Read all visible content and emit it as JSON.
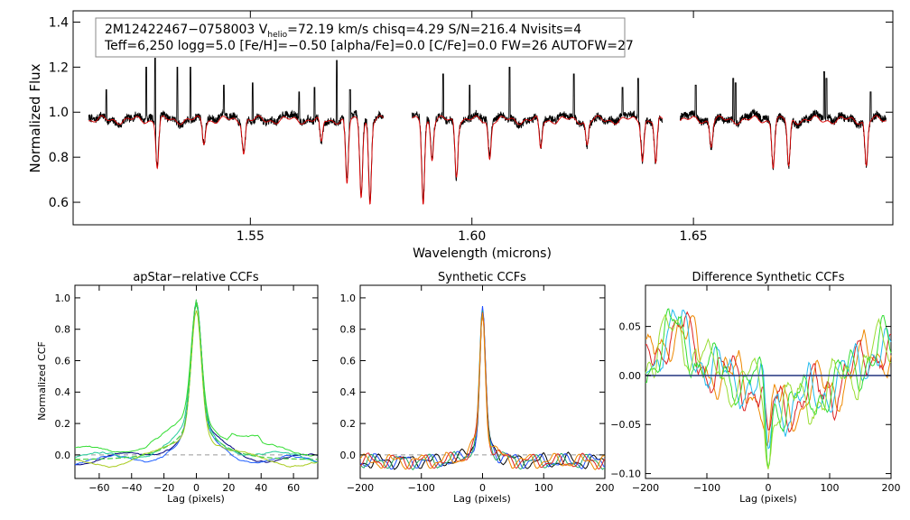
{
  "chart_data": [
    {
      "id": "spectrum",
      "type": "line",
      "xlabel": "Wavelength (microns)",
      "ylabel": "Normalized Flux",
      "xlim": [
        1.51,
        1.695
      ],
      "ylim": [
        0.5,
        1.45
      ],
      "xticks": [
        {
          "v": 1.55,
          "label": "1.55"
        },
        {
          "v": 1.6,
          "label": "1.60"
        },
        {
          "v": 1.65,
          "label": "1.65"
        }
      ],
      "yticks": [
        {
          "v": 0.6,
          "label": "0.6"
        },
        {
          "v": 0.8,
          "label": "0.8"
        },
        {
          "v": 1.0,
          "label": "1.0"
        },
        {
          "v": 1.2,
          "label": "1.2"
        },
        {
          "v": 1.4,
          "label": "1.4"
        }
      ],
      "annotation": {
        "star": "2M12422467−0758003",
        "vhelio_prefix": "V",
        "vhelio_sub": "helio",
        "vhelio_rest": "=72.19 km/s  chisq=4.29  S/N=216.4  Nvisits=4",
        "line2": "Teff=6,250 logg=5.0 [Fe/H]=−0.50 [alpha/Fe]=0.0 [C/Fe]=0.0 FW=26 AUTOFW=27"
      },
      "chips": [
        [
          1.5135,
          1.58
        ],
        [
          1.5865,
          1.643
        ],
        [
          1.647,
          1.6935
        ]
      ],
      "continuum": 0.97,
      "absorption_lines": [
        [
          1.529,
          0.76
        ],
        [
          1.5395,
          0.87
        ],
        [
          1.5485,
          0.83
        ],
        [
          1.566,
          0.86
        ],
        [
          1.5718,
          0.68
        ],
        [
          1.575,
          0.64
        ],
        [
          1.577,
          0.6
        ],
        [
          1.589,
          0.61
        ],
        [
          1.591,
          0.8
        ],
        [
          1.5965,
          0.73
        ],
        [
          1.604,
          0.8
        ],
        [
          1.6155,
          0.84
        ],
        [
          1.626,
          0.86
        ],
        [
          1.6385,
          0.8
        ],
        [
          1.6415,
          0.77
        ],
        [
          1.654,
          0.86
        ],
        [
          1.668,
          0.77
        ],
        [
          1.6715,
          0.76
        ],
        [
          1.689,
          0.77
        ]
      ],
      "emission_spikes": [
        [
          1.5175,
          1.1
        ],
        [
          1.5265,
          1.2
        ],
        [
          1.5285,
          1.24
        ],
        [
          1.5335,
          1.2
        ],
        [
          1.5365,
          1.2
        ],
        [
          1.544,
          1.12
        ],
        [
          1.5505,
          1.13
        ],
        [
          1.561,
          1.09
        ],
        [
          1.5645,
          1.11
        ],
        [
          1.5695,
          1.23
        ],
        [
          1.5725,
          1.1
        ],
        [
          1.5935,
          1.17
        ],
        [
          1.5995,
          1.12
        ],
        [
          1.6085,
          1.2
        ],
        [
          1.623,
          1.17
        ],
        [
          1.634,
          1.11
        ],
        [
          1.6375,
          1.15
        ],
        [
          1.6505,
          1.12
        ],
        [
          1.659,
          1.15
        ],
        [
          1.6595,
          1.13
        ],
        [
          1.6795,
          1.18
        ],
        [
          1.68,
          1.15
        ],
        [
          1.69,
          1.09
        ]
      ],
      "series": [
        {
          "name": "observed",
          "color": "#000000"
        },
        {
          "name": "model",
          "color": "#dd0000"
        }
      ]
    },
    {
      "id": "apstar-ccf",
      "type": "line",
      "title": "apStar−relative CCFs",
      "xlabel": "Lag (pixels)",
      "ylabel": "Normalized CCF",
      "xlim": [
        -75,
        75
      ],
      "ylim": [
        -0.15,
        1.08
      ],
      "xticks": [
        {
          "v": -60,
          "label": "−60"
        },
        {
          "v": -40,
          "label": "−40"
        },
        {
          "v": -20,
          "label": "−20"
        },
        {
          "v": 0,
          "label": "0"
        },
        {
          "v": 20,
          "label": "20"
        },
        {
          "v": 40,
          "label": "40"
        },
        {
          "v": 60,
          "label": "60"
        }
      ],
      "yticks": [
        {
          "v": 0.0,
          "label": "0.0"
        },
        {
          "v": 0.2,
          "label": "0.2"
        },
        {
          "v": 0.4,
          "label": "0.4"
        },
        {
          "v": 0.6,
          "label": "0.6"
        },
        {
          "v": 0.8,
          "label": "0.8"
        },
        {
          "v": 1.0,
          "label": "1.0"
        }
      ],
      "series": [
        {
          "name": "visit-1",
          "color": "#000080",
          "peak": 0.99,
          "base": -0.03,
          "wide": 0.3,
          "s1": 3,
          "s2": 14,
          "ph": 0.3
        },
        {
          "name": "visit-2",
          "color": "#1f5fff",
          "peak": 0.99,
          "base": -0.04,
          "wide": 0.28,
          "s1": 3,
          "s2": 13,
          "ph": 1.2
        },
        {
          "name": "visit-3",
          "color": "#22cc99",
          "peak": 0.99,
          "base": -0.02,
          "wide": 0.3,
          "s1": 3,
          "s2": 15,
          "ph": 2.1
        },
        {
          "name": "visit-4",
          "color": "#33dd33",
          "peak": 0.99,
          "base": 0.02,
          "wide": 0.34,
          "s1": 3,
          "s2": 16,
          "ph": 3.0
        },
        {
          "name": "visit-5",
          "color": "#aacc22",
          "peak": 0.99,
          "base": -0.05,
          "wide": 0.3,
          "s1": 3,
          "s2": 14,
          "ph": 4.4
        }
      ],
      "dashed_zero": true,
      "overlay": {
        "name": "combined",
        "color": "#44cc44"
      }
    },
    {
      "id": "synthetic-ccf",
      "type": "line",
      "title": "Synthetic CCFs",
      "xlabel": "Lag (pixels)",
      "xlim": [
        -200,
        200
      ],
      "ylim": [
        -0.15,
        1.08
      ],
      "xticks": [
        {
          "v": -200,
          "label": "−200"
        },
        {
          "v": -100,
          "label": "−100"
        },
        {
          "v": 0,
          "label": "0"
        },
        {
          "v": 100,
          "label": "100"
        },
        {
          "v": 200,
          "label": "200"
        }
      ],
      "yticks": [
        {
          "v": 0.0,
          "label": "0.0"
        },
        {
          "v": 0.2,
          "label": "0.2"
        },
        {
          "v": 0.4,
          "label": "0.4"
        },
        {
          "v": 0.6,
          "label": "0.6"
        },
        {
          "v": 0.8,
          "label": "0.8"
        },
        {
          "v": 1.0,
          "label": "1.0"
        }
      ],
      "series": [
        {
          "name": "visit-1",
          "color": "#000000",
          "ph": 0.2
        },
        {
          "name": "visit-2",
          "color": "#2050ff",
          "ph": 1.1
        },
        {
          "name": "visit-3",
          "color": "#22aa66",
          "ph": 2.0
        },
        {
          "name": "visit-4",
          "color": "#dd2222",
          "ph": 2.9
        },
        {
          "name": "visit-5",
          "color": "#ee8800",
          "ph": 3.8
        }
      ],
      "dashed_zero": true
    },
    {
      "id": "difference-ccf",
      "type": "line",
      "title": "Difference Synthetic CCFs",
      "xlabel": "Lag (pixels)",
      "xlim": [
        -200,
        200
      ],
      "ylim": [
        -0.105,
        0.092
      ],
      "xticks": [
        {
          "v": -200,
          "label": "−200"
        },
        {
          "v": -100,
          "label": "−100"
        },
        {
          "v": 0,
          "label": "0"
        },
        {
          "v": 100,
          "label": "100"
        },
        {
          "v": 200,
          "label": "200"
        }
      ],
      "yticks": [
        {
          "v": -0.1,
          "label": "−0.10"
        },
        {
          "v": -0.05,
          "label": "−0.05"
        },
        {
          "v": 0.0,
          "label": "0.00"
        },
        {
          "v": 0.05,
          "label": "0.05"
        }
      ],
      "series": [
        {
          "name": "diff-1",
          "color": "#ee8800",
          "ph": 0.4
        },
        {
          "name": "diff-2",
          "color": "#dd2222",
          "ph": 1.3
        },
        {
          "name": "diff-3",
          "color": "#22bbee",
          "ph": 2.2
        },
        {
          "name": "diff-4",
          "color": "#33dd33",
          "ph": 3.1
        },
        {
          "name": "diff-5",
          "color": "#99dd33",
          "ph": 4.0
        }
      ],
      "zero_line": {
        "color": "#334488"
      }
    }
  ]
}
